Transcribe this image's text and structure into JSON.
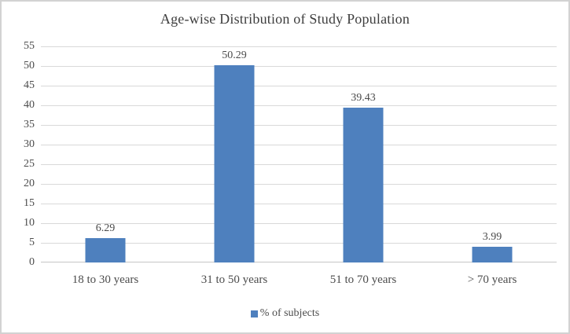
{
  "chart": {
    "title": "Age-wise Distribution of Study Population",
    "legend_label": "% of subjects"
  },
  "chart_data": {
    "type": "bar",
    "title": "Age-wise Distribution of Study Population",
    "categories": [
      "18 to 30 years",
      "31 to 50 years",
      "51 to 70 years",
      "> 70 years"
    ],
    "series": [
      {
        "name": "% of subjects",
        "values": [
          6.29,
          50.29,
          39.43,
          3.99
        ]
      }
    ],
    "data_labels": [
      "6.29",
      "50.29",
      "39.43",
      "3.99"
    ],
    "xlabel": "",
    "ylabel": "",
    "ylim": [
      0,
      55
    ],
    "yticks": [
      0,
      5,
      10,
      15,
      20,
      25,
      30,
      35,
      40,
      45,
      50,
      55
    ],
    "grid": true,
    "legend_position": "bottom",
    "colors": {
      "bar": "#4e80be",
      "gridline": "#d9d9d9",
      "text": "#4c4c4c",
      "title_text": "#3d3d3d",
      "frame_border": "#d2d2d2"
    }
  }
}
